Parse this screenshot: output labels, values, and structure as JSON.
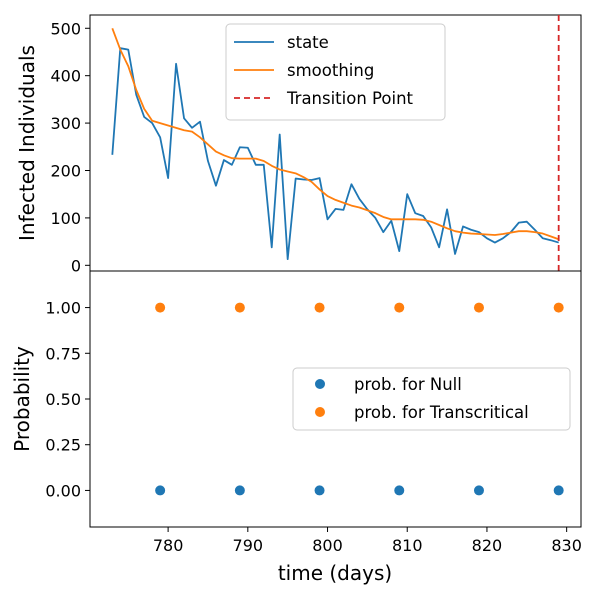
{
  "chart_data": [
    {
      "type": "line",
      "ylabel": "Infected Individuals",
      "xlim": [
        770.2,
        831.8
      ],
      "ylim": [
        -12,
        528
      ],
      "yticks": [
        0,
        100,
        200,
        300,
        400,
        500
      ],
      "legend": {
        "placement": "top-center",
        "entries": [
          "state",
          "smoothing",
          "Transition Point"
        ]
      },
      "series": [
        {
          "name": "state",
          "color": "#1f77b4",
          "x": [
            773,
            774,
            775,
            776,
            777,
            778,
            779,
            780,
            781,
            782,
            783,
            784,
            785,
            786,
            787,
            788,
            789,
            790,
            791,
            792,
            793,
            794,
            795,
            796,
            797,
            798,
            799,
            800,
            801,
            802,
            803,
            804,
            805,
            806,
            807,
            808,
            809,
            810,
            811,
            812,
            813,
            814,
            815,
            816,
            817,
            818,
            819,
            820,
            821,
            822,
            823,
            824,
            825,
            826,
            827,
            828,
            829
          ],
          "y": [
            233,
            458,
            455,
            360,
            313,
            300,
            270,
            184,
            425,
            310,
            290,
            303,
            220,
            168,
            222,
            212,
            249,
            248,
            212,
            212,
            38,
            276,
            13,
            183,
            181,
            180,
            184,
            97,
            119,
            117,
            171,
            140,
            118,
            100,
            70,
            94,
            30,
            150,
            110,
            104,
            80,
            38,
            118,
            24,
            82,
            75,
            70,
            57,
            48,
            57,
            70,
            90,
            92,
            75,
            57,
            53,
            48
          ]
        },
        {
          "name": "smoothing",
          "color": "#ff7f0e",
          "x": [
            773,
            774,
            775,
            776,
            777,
            778,
            779,
            780,
            781,
            782,
            783,
            784,
            785,
            786,
            787,
            788,
            789,
            790,
            791,
            792,
            793,
            794,
            795,
            796,
            797,
            798,
            799,
            800,
            801,
            802,
            803,
            804,
            805,
            806,
            807,
            808,
            809,
            810,
            811,
            812,
            813,
            814,
            815,
            816,
            817,
            818,
            819,
            820,
            821,
            822,
            823,
            824,
            825,
            826,
            827,
            828,
            829
          ],
          "y": [
            500,
            455,
            420,
            370,
            330,
            305,
            300,
            295,
            290,
            285,
            282,
            270,
            255,
            240,
            232,
            226,
            225,
            225,
            225,
            220,
            210,
            202,
            198,
            194,
            186,
            176,
            160,
            146,
            138,
            132,
            126,
            122,
            116,
            110,
            102,
            97,
            97,
            97,
            97,
            96,
            92,
            85,
            78,
            72,
            69,
            67,
            66,
            65,
            64,
            66,
            69,
            72,
            72,
            70,
            67,
            61,
            55
          ]
        }
      ],
      "vline": {
        "name": "Transition Point",
        "x": 829,
        "color": "#d62728"
      }
    },
    {
      "type": "scatter",
      "xlabel": "time (days)",
      "ylabel": "Probability",
      "xlim": [
        770.2,
        831.8
      ],
      "ylim": [
        -0.2,
        1.2
      ],
      "xticks": [
        780,
        790,
        800,
        810,
        820,
        830
      ],
      "yticks": [
        "0.00",
        "0.25",
        "0.50",
        "0.75",
        "1.00"
      ],
      "legend": {
        "placement": "center-right",
        "entries": [
          "prob. for Null",
          "prob. for Transcritical"
        ]
      },
      "series": [
        {
          "name": "prob. for Null",
          "color": "#1f77b4",
          "x": [
            779,
            789,
            799,
            809,
            819,
            829
          ],
          "y": [
            0,
            0,
            0,
            0,
            0,
            0
          ]
        },
        {
          "name": "prob. for Transcritical",
          "color": "#ff7f0e",
          "x": [
            779,
            789,
            799,
            809,
            819,
            829
          ],
          "y": [
            1,
            1,
            1,
            1,
            1,
            1
          ]
        }
      ]
    }
  ]
}
